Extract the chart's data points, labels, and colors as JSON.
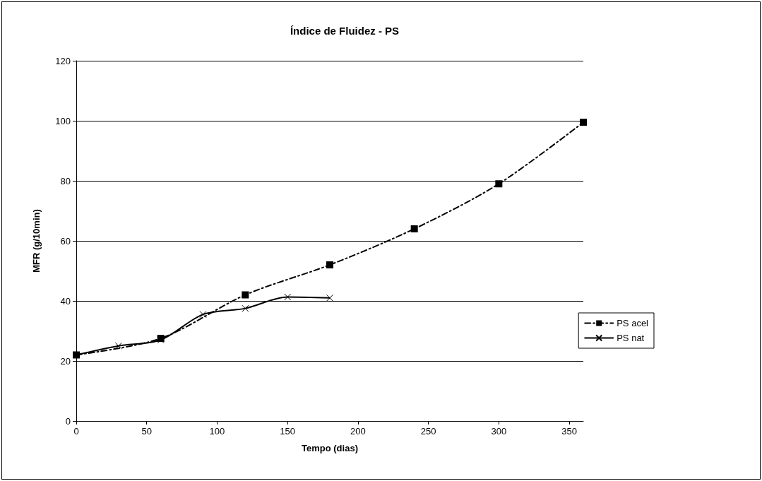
{
  "chart_data": {
    "type": "line",
    "title": "Índice de Fluidez - PS",
    "xlabel": "Tempo (dias)",
    "ylabel": "MFR (g/10min)",
    "xlim": [
      0,
      360
    ],
    "xticks": [
      0,
      50,
      100,
      150,
      200,
      250,
      300,
      350
    ],
    "ylim": [
      0,
      120
    ],
    "yticks": [
      0,
      20,
      40,
      60,
      80,
      100,
      120
    ],
    "grid": "y",
    "legend": "right",
    "series": [
      {
        "name": "PS acel",
        "color": "#000000",
        "marker": "square",
        "line_style": "dashed",
        "x": [
          0,
          60,
          120,
          180,
          240,
          300,
          360
        ],
        "values": [
          22,
          27.5,
          42,
          52,
          64,
          79,
          99.5
        ]
      },
      {
        "name": "PS nat",
        "color": "#000000",
        "marker": "cross",
        "line_style": "solid",
        "x": [
          0,
          30,
          60,
          90,
          120,
          150,
          180
        ],
        "values": [
          22,
          25,
          27,
          35.5,
          37.5,
          41.3,
          41
        ]
      }
    ]
  }
}
